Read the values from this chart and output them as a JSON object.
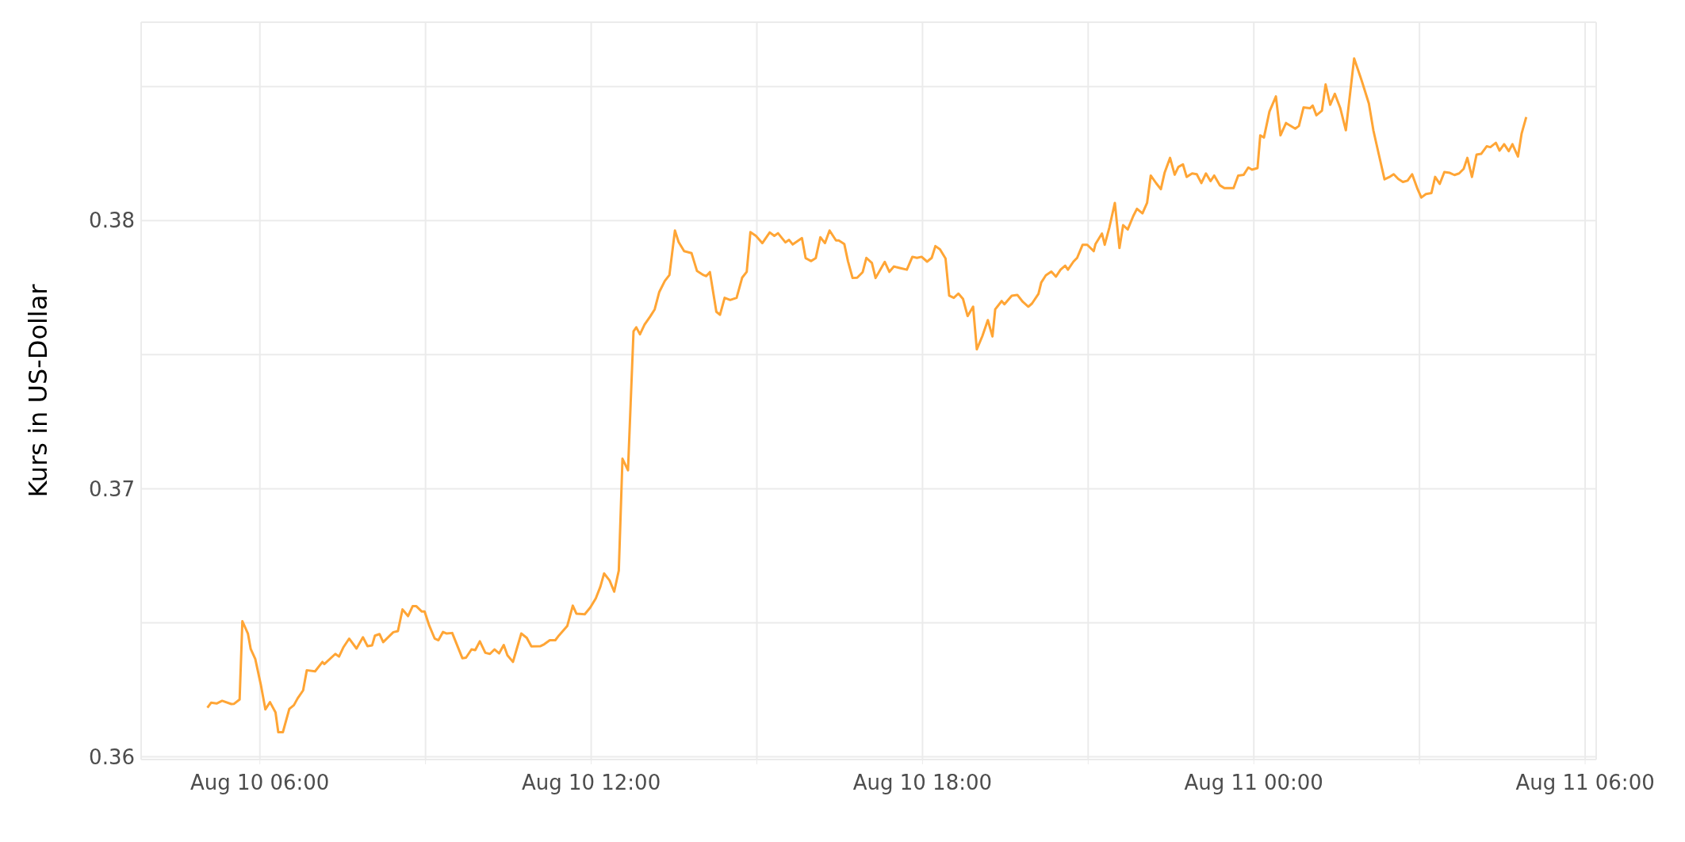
{
  "chart_data": {
    "type": "line",
    "ylabel": "Kurs in US-Dollar",
    "x": [
      "--08-10T05:03",
      "--08-10T05:07",
      "--08-10T05:13",
      "--08-10T05:19",
      "--08-10T05:29",
      "--08-10T05:32",
      "--08-10T05:38",
      "--08-10T05:41",
      "--08-10T05:47",
      "--08-10T05:50",
      "--08-10T05:55",
      "--08-10T06:01",
      "--08-10T06:06",
      "--08-10T06:11",
      "--08-10T06:17",
      "--08-10T06:20",
      "--08-10T06:25",
      "--08-10T06:32",
      "--08-10T06:37",
      "--08-10T06:41",
      "--08-10T06:47",
      "--08-10T06:51",
      "--08-10T07:00",
      "--08-10T07:08",
      "--08-10T07:10",
      "--08-10T07:22",
      "--08-10T07:26",
      "--08-10T07:31",
      "--08-10T07:37",
      "--08-10T07:45",
      "--08-10T07:52",
      "--08-10T07:57",
      "--08-10T08:02",
      "--08-10T08:05",
      "--08-10T08:10",
      "--08-10T08:14",
      "--08-10T08:25",
      "--08-10T08:30",
      "--08-10T08:35",
      "--08-10T08:41",
      "--08-10T08:46",
      "--08-10T08:50",
      "--08-10T08:56",
      "--08-10T08:59",
      "--08-10T09:04",
      "--08-10T09:10",
      "--08-10T09:14",
      "--08-10T09:19",
      "--08-10T09:23",
      "--08-10T09:29",
      "--08-10T09:40",
      "--08-10T09:44",
      "--08-10T09:50",
      "--08-10T09:54",
      "--08-10T09:59",
      "--08-10T10:05",
      "--08-10T10:10",
      "--08-10T10:15",
      "--08-10T10:20",
      "--08-10T10:25",
      "--08-10T10:29",
      "--08-10T10:35",
      "--08-10T10:39",
      "--08-10T10:44",
      "--08-10T10:50",
      "--08-10T10:55",
      "--08-10T11:05",
      "--08-10T11:09",
      "--08-10T11:15",
      "--08-10T11:21",
      "--08-10T11:25",
      "--08-10T11:34",
      "--08-10T11:40",
      "--08-10T11:44",
      "--08-10T11:53",
      "--08-10T11:59",
      "--08-10T12:05",
      "--08-10T12:10",
      "--08-10T12:14",
      "--08-10T12:20",
      "--08-10T12:25",
      "--08-10T12:30",
      "--08-10T12:34",
      "--08-10T12:40",
      "--08-10T12:46",
      "--08-10T12:49",
      "--08-10T12:53",
      "--08-10T12:58",
      "--08-10T13:04",
      "--08-10T13:09",
      "--08-10T13:14",
      "--08-10T13:20",
      "--08-10T13:25",
      "--08-10T13:31",
      "--08-10T13:35",
      "--08-10T13:41",
      "--08-10T13:49",
      "--08-10T13:55",
      "--08-10T14:02",
      "--08-10T14:05",
      "--08-10T14:09",
      "--08-10T14:16",
      "--08-10T14:20",
      "--08-10T14:25",
      "--08-10T14:31",
      "--08-10T14:38",
      "--08-10T14:44",
      "--08-10T14:49",
      "--08-10T14:53",
      "--08-10T14:59",
      "--08-10T15:06",
      "--08-10T15:14",
      "--08-10T15:19",
      "--08-10T15:23",
      "--08-10T15:31",
      "--08-10T15:35",
      "--08-10T15:39",
      "--08-10T15:49",
      "--08-10T15:53",
      "--08-10T15:59",
      "--08-10T16:04",
      "--08-10T16:09",
      "--08-10T16:14",
      "--08-10T16:19",
      "--08-10T16:26",
      "--08-10T16:29",
      "--08-10T16:35",
      "--08-10T16:39",
      "--08-10T16:44",
      "--08-10T16:49",
      "--08-10T16:55",
      "--08-10T16:59",
      "--08-10T17:05",
      "--08-10T17:09",
      "--08-10T17:19",
      "--08-10T17:24",
      "--08-10T17:29",
      "--08-10T17:31",
      "--08-10T17:37",
      "--08-10T17:43",
      "--08-10T17:49",
      "--08-10T17:54",
      "--08-10T17:59",
      "--08-10T18:05",
      "--08-10T18:10",
      "--08-10T18:14",
      "--08-10T18:19",
      "--08-10T18:25",
      "--08-10T18:29",
      "--08-10T18:34",
      "--08-10T18:39",
      "--08-10T18:44",
      "--08-10T18:49",
      "--08-10T18:55",
      "--08-10T18:59",
      "--08-10T19:05",
      "--08-10T19:11",
      "--08-10T19:16",
      "--08-10T19:19",
      "--08-10T19:26",
      "--08-10T19:29",
      "--08-10T19:37",
      "--08-10T19:43",
      "--08-10T19:49",
      "--08-10T19:55",
      "--08-10T19:59",
      "--08-10T20:06",
      "--08-10T20:09",
      "--08-10T20:14",
      "--08-10T20:20",
      "--08-10T20:25",
      "--08-10T20:30",
      "--08-10T20:35",
      "--08-10T20:38",
      "--08-10T20:44",
      "--08-10T20:48",
      "--08-10T20:54",
      "--08-10T20:59",
      "--08-10T21:06",
      "--08-10T21:08",
      "--08-10T21:15",
      "--08-10T21:18",
      "--08-10T21:23",
      "--08-10T21:29",
      "--08-10T21:34",
      "--08-10T21:38",
      "--08-10T21:43",
      "--08-10T21:49",
      "--08-10T21:53",
      "--08-10T21:59",
      "--08-10T22:04",
      "--08-10T22:08",
      "--08-10T22:14",
      "--08-10T22:19",
      "--08-10T22:23",
      "--08-10T22:29",
      "--08-10T22:34",
      "--08-10T22:38",
      "--08-10T22:43",
      "--08-10T22:47",
      "--08-10T22:53",
      "--08-10T22:58",
      "--08-10T23:03",
      "--08-10T23:08",
      "--08-10T23:13",
      "--08-10T23:17",
      "--08-10T23:23",
      "--08-10T23:28",
      "--08-10T23:38",
      "--08-10T23:43",
      "--08-10T23:49",
      "--08-10T23:54",
      "--08-10T23:58",
      "--08-11T00:04",
      "--08-11T00:07",
      "--08-11T00:11",
      "--08-11T00:17",
      "--08-11T00:24",
      "--08-11T00:29",
      "--08-11T00:35",
      "--08-11T00:45",
      "--08-11T00:49",
      "--08-11T00:54",
      "--08-11T01:01",
      "--08-11T01:04",
      "--08-11T01:08",
      "--08-11T01:14",
      "--08-11T01:18",
      "--08-11T01:23",
      "--08-11T01:28",
      "--08-11T01:34",
      "--08-11T01:40",
      "--08-11T01:49",
      "--08-11T01:57",
      "--08-11T02:05",
      "--08-11T02:10",
      "--08-11T02:16",
      "--08-11T02:22",
      "--08-11T02:28",
      "--08-11T02:32",
      "--08-11T02:37",
      "--08-11T02:42",
      "--08-11T02:47",
      "--08-11T02:52",
      "--08-11T02:58",
      "--08-11T03:02",
      "--08-11T03:07",
      "--08-11T03:13",
      "--08-11T03:17",
      "--08-11T03:22",
      "--08-11T03:27",
      "--08-11T03:33",
      "--08-11T03:38",
      "--08-11T03:43",
      "--08-11T03:48",
      "--08-11T03:52",
      "--08-11T03:57",
      "--08-11T04:02",
      "--08-11T04:07",
      "--08-11T04:13",
      "--08-11T04:17",
      "--08-11T04:23",
      "--08-11T04:27",
      "--08-11T04:32",
      "--08-11T04:37",
      "--08-11T04:41",
      "--08-11T04:47",
      "--08-11T04:51",
      "--08-11T04:56"
    ],
    "series": [
      {
        "color": "#ffa535",
        "values": [
          0.36183,
          0.36202,
          0.36199,
          0.36209,
          0.36197,
          0.36198,
          0.36214,
          0.36506,
          0.3646,
          0.36403,
          0.36365,
          0.3627,
          0.36177,
          0.36204,
          0.36166,
          0.36092,
          0.36092,
          0.36179,
          0.36193,
          0.36218,
          0.36248,
          0.36323,
          0.36319,
          0.36354,
          0.36346,
          0.36384,
          0.36374,
          0.3641,
          0.36441,
          0.36404,
          0.36446,
          0.36413,
          0.36416,
          0.36452,
          0.36458,
          0.36428,
          0.36465,
          0.36469,
          0.3655,
          0.36525,
          0.36562,
          0.36562,
          0.36542,
          0.36542,
          0.3649,
          0.36441,
          0.36435,
          0.36466,
          0.3646,
          0.36462,
          0.36368,
          0.3637,
          0.36401,
          0.36398,
          0.36431,
          0.36388,
          0.36384,
          0.36401,
          0.36386,
          0.36417,
          0.36379,
          0.36354,
          0.36401,
          0.3646,
          0.36444,
          0.36412,
          0.36413,
          0.3642,
          0.36435,
          0.36435,
          0.36453,
          0.36488,
          0.36564,
          0.36534,
          0.36532,
          0.36557,
          0.36591,
          0.36635,
          0.36684,
          0.36658,
          0.36616,
          0.36695,
          0.37112,
          0.37069,
          0.37587,
          0.37602,
          0.37576,
          0.37612,
          0.37642,
          0.37669,
          0.37734,
          0.37775,
          0.37797,
          0.37963,
          0.3792,
          0.37886,
          0.37879,
          0.37812,
          0.37797,
          0.37793,
          0.37808,
          0.3766,
          0.37649,
          0.37712,
          0.37704,
          0.37712,
          0.37787,
          0.37809,
          0.37957,
          0.37943,
          0.37916,
          0.37956,
          0.37943,
          0.37953,
          0.37919,
          0.37928,
          0.37911,
          0.37935,
          0.3786,
          0.37849,
          0.3786,
          0.37938,
          0.37916,
          0.37963,
          0.37926,
          0.37926,
          0.37913,
          0.37849,
          0.37786,
          0.37787,
          0.37808,
          0.37861,
          0.37842,
          0.37786,
          0.37846,
          0.37809,
          0.37829,
          0.37827,
          0.37822,
          0.37817,
          0.37865,
          0.37861,
          0.37865,
          0.37847,
          0.37861,
          0.37905,
          0.37893,
          0.37859,
          0.3772,
          0.37712,
          0.37728,
          0.37708,
          0.37644,
          0.37679,
          0.3752,
          0.37569,
          0.37629,
          0.37568,
          0.37669,
          0.377,
          0.37688,
          0.3772,
          0.37723,
          0.37697,
          0.37679,
          0.37691,
          0.37727,
          0.37769,
          0.37796,
          0.3781,
          0.37791,
          0.37817,
          0.37832,
          0.37817,
          0.37847,
          0.37861,
          0.3791,
          0.3791,
          0.37886,
          0.37913,
          0.37952,
          0.3791,
          0.37974,
          0.38066,
          0.37898,
          0.37983,
          0.37967,
          0.38017,
          0.38044,
          0.38027,
          0.38066,
          0.38168,
          0.38139,
          0.38117,
          0.38178,
          0.38234,
          0.38171,
          0.382,
          0.3821,
          0.38163,
          0.38176,
          0.38173,
          0.3814,
          0.38176,
          0.38147,
          0.38168,
          0.38132,
          0.38121,
          0.38121,
          0.38168,
          0.38171,
          0.38198,
          0.3819,
          0.38196,
          0.38318,
          0.3831,
          0.38407,
          0.38463,
          0.38318,
          0.38364,
          0.38343,
          0.38353,
          0.38422,
          0.38419,
          0.38429,
          0.38393,
          0.3841,
          0.38508,
          0.38432,
          0.38473,
          0.38419,
          0.38337,
          0.38605,
          0.38524,
          0.38437,
          0.38335,
          0.38244,
          0.38154,
          0.38164,
          0.38173,
          0.38155,
          0.38144,
          0.38149,
          0.38173,
          0.38117,
          0.38086,
          0.38099,
          0.38103,
          0.38163,
          0.38137,
          0.38181,
          0.38178,
          0.3817,
          0.38176,
          0.38193,
          0.38234,
          0.38163,
          0.38246,
          0.38249,
          0.38277,
          0.38274,
          0.3829,
          0.38261,
          0.38285,
          0.38259,
          0.38285,
          0.38239,
          0.38325,
          0.38386
        ]
      }
    ],
    "xlim": [
      "--08-10T03:51",
      "--08-11T06:12"
    ],
    "xticks": [
      {
        "value": "--08-10T06:00",
        "label": "Aug 10 06:00"
      },
      {
        "value": "--08-10T09:00",
        "label": null
      },
      {
        "value": "--08-10T12:00",
        "label": "Aug 10 12:00"
      },
      {
        "value": "--08-10T15:00",
        "label": null
      },
      {
        "value": "--08-10T18:00",
        "label": "Aug 10 18:00"
      },
      {
        "value": "--08-10T21:00",
        "label": null
      },
      {
        "value": "--08-11T00:00",
        "label": "Aug 11 00:00"
      },
      {
        "value": "--08-11T03:00",
        "label": null
      },
      {
        "value": "--08-11T06:00",
        "label": "Aug 11 06:00"
      }
    ],
    "ylim": [
      0.3599,
      0.3874
    ],
    "yticks": [
      0.36,
      {
        "value": 0.365,
        "label": null
      },
      0.37,
      {
        "value": 0.375,
        "label": null
      },
      0.38,
      {
        "value": 0.385,
        "label": null
      }
    ],
    "grid": true,
    "legend": false,
    "marker": "none",
    "line_style": "solid"
  }
}
